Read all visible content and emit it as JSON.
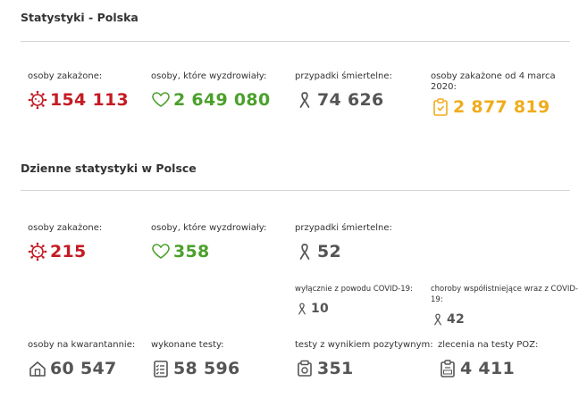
{
  "colors": {
    "infected": "#c41b24",
    "recovered": "#4ba02b",
    "deaths": "#555555",
    "total": "#f0ac1c"
  },
  "poland": {
    "title": "Statystyki - Polska",
    "infected": {
      "label": "osoby zakażone:",
      "value": "154 113",
      "icon": "virus-icon"
    },
    "recovered": {
      "label": "osoby, które wyzdrowiały:",
      "value": "2 649 080",
      "icon": "heart-icon"
    },
    "deaths": {
      "label": "przypadki śmiertelne:",
      "value": "74 626",
      "icon": "ribbon-icon"
    },
    "total": {
      "label": "osoby zakażone od 4 marca 2020:",
      "value": "2 877 819",
      "icon": "clipboard-icon"
    }
  },
  "daily": {
    "title": "Dzienne statystyki w Polsce",
    "infected": {
      "label": "osoby zakażone:",
      "value": "215",
      "icon": "virus-icon"
    },
    "recovered": {
      "label": "osoby, które wyzdrowiały:",
      "value": "358",
      "icon": "heart-icon"
    },
    "deaths": {
      "label": "przypadki śmiertelne:",
      "value": "52",
      "icon": "ribbon-icon"
    },
    "deaths_covid_only": {
      "label": "wyłącznie z powodu COVID-19:",
      "value": "10",
      "icon": "ribbon-icon"
    },
    "deaths_comorbid": {
      "label": "choroby współistniejące wraz z COVID-19:",
      "value": "42",
      "icon": "ribbon-icon"
    },
    "quarantine": {
      "label": "osoby na kwarantannie:",
      "value": "60 547",
      "icon": "house-icon"
    },
    "tests": {
      "label": "wykonane testy:",
      "value": "58 596",
      "icon": "checklist-icon"
    },
    "positive_tests": {
      "label": "testy z wynikiem pozytywnym:",
      "value": "351",
      "icon": "test-icon"
    },
    "poz_orders": {
      "label": "zlecenia na testy POZ:",
      "value": "4 411",
      "icon": "poz-clipboard-icon"
    }
  }
}
